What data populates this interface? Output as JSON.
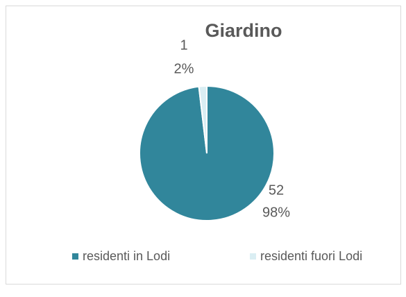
{
  "chart_data": {
    "type": "pie",
    "title": "Giardino",
    "categories": [
      "residenti in Lodi",
      "residenti fuori Lodi"
    ],
    "values": [
      52,
      1
    ],
    "percent_labels": [
      "98%",
      "2%"
    ],
    "colors": [
      "#31869b",
      "#daeef3"
    ],
    "legend": "bottom"
  }
}
